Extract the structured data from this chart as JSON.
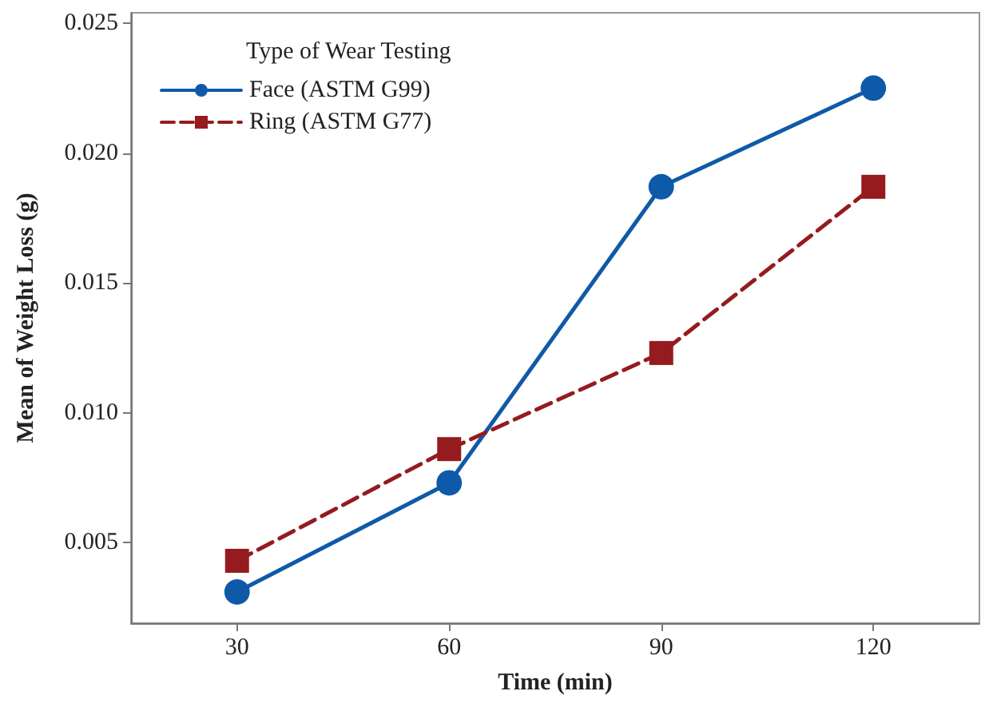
{
  "chart_data": {
    "type": "line",
    "xlabel": "Time (min)",
    "ylabel": "Mean of Weight Loss (g)",
    "legend_title": "Type of Wear Testing",
    "legend": "top left",
    "grid": false,
    "x": [
      30,
      60,
      90,
      120
    ],
    "xlim": [
      15,
      135
    ],
    "xticks": [
      30,
      60,
      90,
      120
    ],
    "ylim": [
      0.0019,
      0.0254
    ],
    "yticks": [
      0.005,
      {
        "value": 0.01,
        "label": "0.010"
      },
      0.015,
      {
        "value": 0.02,
        "label": "0.020"
      },
      0.025
    ],
    "series": [
      {
        "name": "Face (ASTM G99)",
        "color": "#0f5aa8",
        "marker": "circle",
        "line_style": "solid",
        "values": [
          0.0031,
          0.0073,
          0.0187,
          0.0225
        ]
      },
      {
        "name": "Ring (ASTM G77)",
        "color": "#951b1e",
        "marker": "square",
        "line_style": "dashed",
        "values": [
          0.0043,
          0.0086,
          0.0123,
          0.0187
        ]
      }
    ]
  }
}
